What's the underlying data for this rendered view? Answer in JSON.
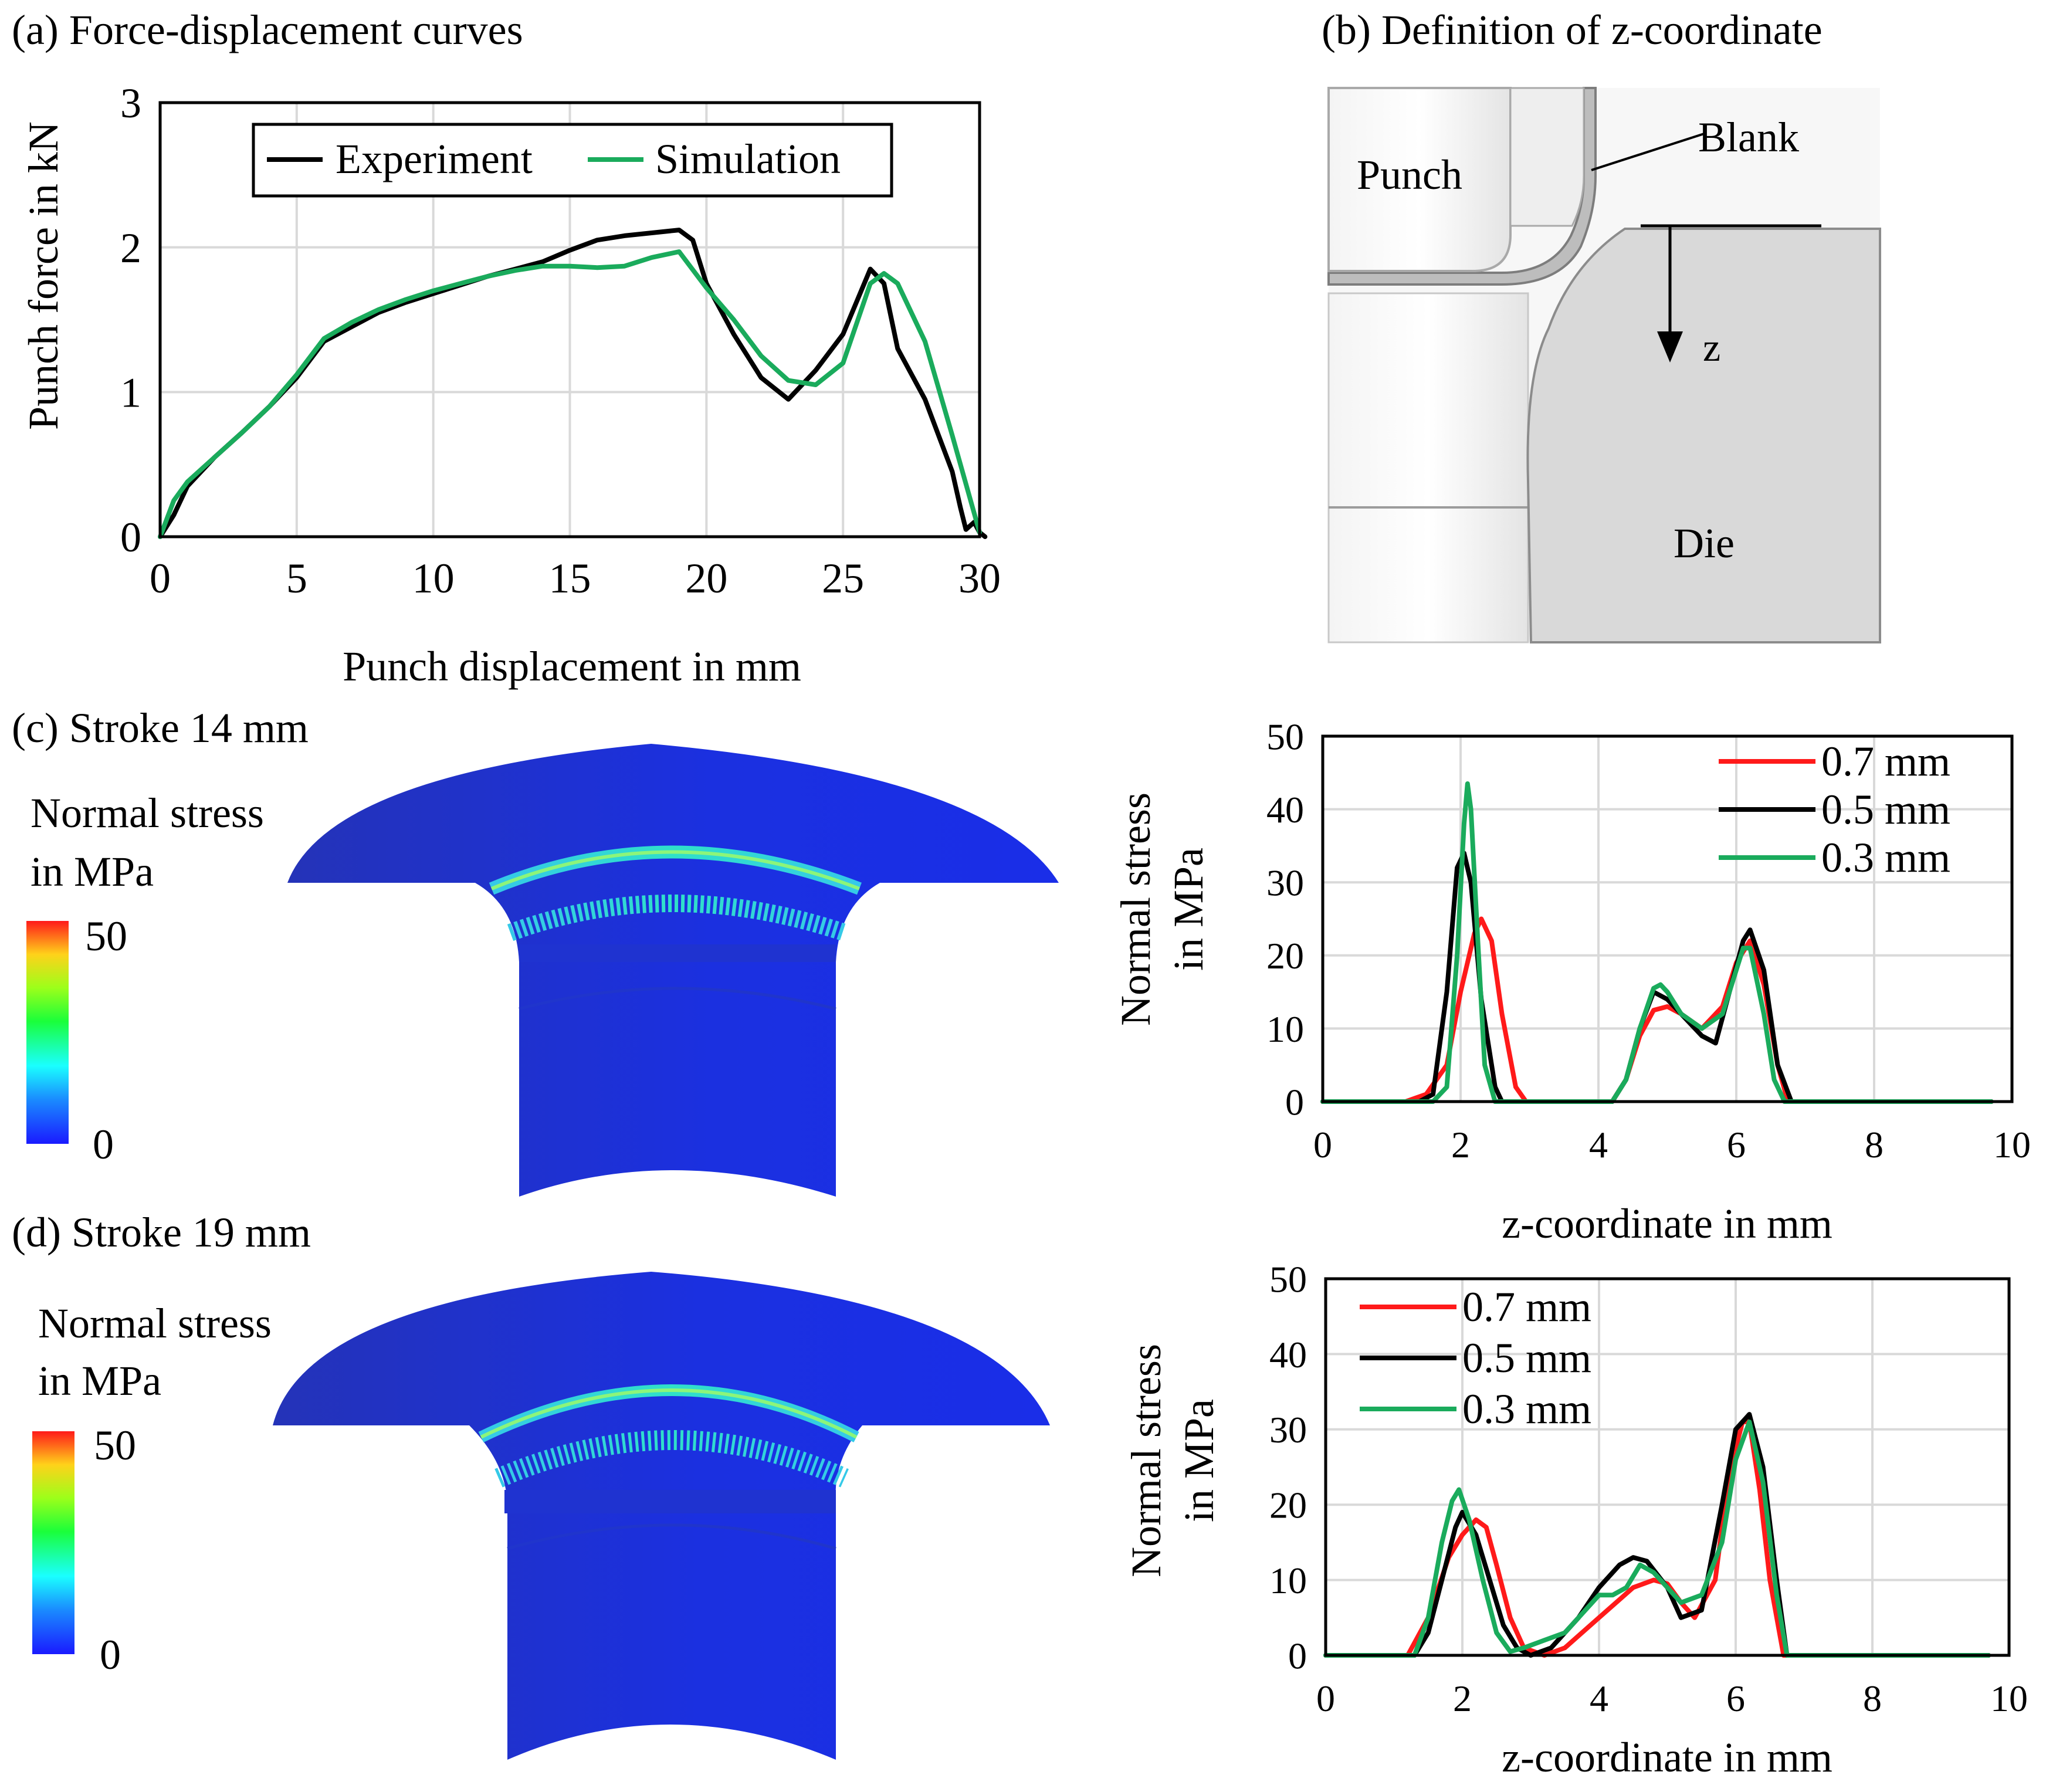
{
  "panel_labels": {
    "a": "(a) Force-displacement curves",
    "b": "(b) Definition of z-coordinate",
    "c": "(c) Stroke 14 mm",
    "d": "(d) Stroke 19 mm"
  },
  "schematic": {
    "punch": "Punch",
    "blank": "Blank",
    "die": "Die",
    "z": "z"
  },
  "colorbar": {
    "title_line1": "Normal stress",
    "title_line2": "in MPa",
    "max": "50",
    "min": "0"
  },
  "colors": {
    "experiment": "#000000",
    "simulation": "#1aab5c",
    "red": "#ff1a1a",
    "black": "#000000",
    "green": "#1aab5c",
    "fe_blue": "#1a2ee8"
  },
  "chart_data": [
    {
      "id": "a",
      "type": "line",
      "title": "(a) Force-displacement curves",
      "xlabel": "Punch displacement in mm",
      "ylabel": "Punch force in kN",
      "xlim": [
        0,
        30
      ],
      "ylim": [
        0,
        3
      ],
      "xticks": [
        0,
        5,
        10,
        15,
        20,
        25,
        30
      ],
      "yticks": [
        0,
        1,
        2,
        3
      ],
      "grid": true,
      "legend_position": "top",
      "series": [
        {
          "name": "Experiment",
          "color": "#000000",
          "x": [
            0,
            0.5,
            1,
            2,
            3,
            4,
            5,
            6,
            7,
            8,
            9,
            10,
            11,
            12,
            13,
            14,
            15,
            16,
            17,
            18,
            19,
            19.5,
            20,
            21,
            22,
            23,
            24,
            25,
            26,
            26.5,
            27,
            28,
            28.5,
            29,
            29.3,
            29.5,
            29.8,
            30,
            30.2
          ],
          "y": [
            0,
            0.15,
            0.35,
            0.55,
            0.72,
            0.9,
            1.1,
            1.35,
            1.45,
            1.55,
            1.62,
            1.68,
            1.74,
            1.8,
            1.85,
            1.9,
            1.98,
            2.05,
            2.08,
            2.1,
            2.12,
            2.05,
            1.75,
            1.4,
            1.1,
            0.95,
            1.15,
            1.4,
            1.85,
            1.75,
            1.3,
            0.95,
            0.7,
            0.45,
            0.2,
            0.05,
            0.1,
            0.03,
            0.0
          ]
        },
        {
          "name": "Simulation",
          "color": "#1aab5c",
          "x": [
            0,
            0.5,
            1,
            2,
            3,
            4,
            5,
            6,
            7,
            8,
            9,
            10,
            11,
            12,
            13,
            14,
            15,
            16,
            17,
            18,
            19,
            20,
            21,
            22,
            23,
            24,
            25,
            26,
            26.5,
            27,
            28,
            29,
            30
          ],
          "y": [
            0,
            0.25,
            0.38,
            0.55,
            0.72,
            0.9,
            1.12,
            1.37,
            1.48,
            1.57,
            1.64,
            1.7,
            1.75,
            1.8,
            1.84,
            1.87,
            1.87,
            1.86,
            1.87,
            1.93,
            1.97,
            1.72,
            1.5,
            1.25,
            1.08,
            1.05,
            1.2,
            1.75,
            1.82,
            1.75,
            1.35,
            0.7,
            0.03
          ]
        }
      ]
    },
    {
      "id": "c",
      "type": "line",
      "xlabel": "z-coordinate in mm",
      "ylabel_line1": "Normal stress",
      "ylabel_line2": "in MPa",
      "xlim": [
        0,
        10
      ],
      "ylim": [
        0,
        50
      ],
      "xticks": [
        0,
        2,
        4,
        6,
        8,
        10
      ],
      "yticks": [
        0,
        10,
        20,
        30,
        40,
        50
      ],
      "grid": true,
      "legend_position": "top-right",
      "series": [
        {
          "name": "0.7 mm",
          "color": "#ff1a1a",
          "x": [
            0,
            1.2,
            1.5,
            1.8,
            2.0,
            2.2,
            2.3,
            2.45,
            2.6,
            2.8,
            2.95,
            4.2,
            4.4,
            4.6,
            4.8,
            5.0,
            5.2,
            5.5,
            5.8,
            6.0,
            6.2,
            6.4,
            6.6,
            6.75,
            9.7
          ],
          "y": [
            0,
            0,
            1,
            5,
            15,
            23,
            25,
            22,
            12,
            2,
            0,
            0,
            3,
            9,
            12.5,
            13,
            12,
            10,
            13,
            19,
            22,
            16,
            5,
            0,
            0
          ]
        },
        {
          "name": "0.5 mm",
          "color": "#000000",
          "x": [
            0,
            1.4,
            1.6,
            1.8,
            1.95,
            2.05,
            2.15,
            2.3,
            2.5,
            2.6,
            4.2,
            4.4,
            4.6,
            4.8,
            5.0,
            5.2,
            5.5,
            5.7,
            5.9,
            6.1,
            6.2,
            6.4,
            6.6,
            6.8,
            9.7
          ],
          "y": [
            0,
            0,
            1,
            15,
            32,
            34,
            30,
            14,
            2,
            0,
            0,
            3,
            10,
            15,
            14,
            12,
            9,
            8,
            15,
            22,
            23.5,
            18,
            5,
            0,
            0
          ]
        },
        {
          "name": "0.3 mm",
          "color": "#1aab5c",
          "x": [
            0,
            1.6,
            1.8,
            1.95,
            2.05,
            2.1,
            2.15,
            2.25,
            2.35,
            2.5,
            4.2,
            4.4,
            4.6,
            4.8,
            4.9,
            5.0,
            5.2,
            5.5,
            5.8,
            6.0,
            6.1,
            6.2,
            6.4,
            6.55,
            6.7,
            9.7
          ],
          "y": [
            0,
            0,
            2,
            20,
            38,
            43.5,
            40,
            22,
            5,
            0,
            0,
            3,
            10,
            15.5,
            16,
            15,
            12,
            10,
            12,
            18,
            21,
            21,
            12,
            3,
            0,
            0
          ]
        }
      ]
    },
    {
      "id": "d",
      "type": "line",
      "xlabel": "z-coordinate in mm",
      "ylabel_line1": "Normal stress",
      "ylabel_line2": "in MPa",
      "xlim": [
        0,
        10
      ],
      "ylim": [
        0,
        50
      ],
      "xticks": [
        0,
        2,
        4,
        6,
        8,
        10
      ],
      "yticks": [
        0,
        10,
        20,
        30,
        40,
        50
      ],
      "grid": true,
      "legend_position": "top-left",
      "series": [
        {
          "name": "0.7 mm",
          "color": "#ff1a1a",
          "x": [
            0,
            1.2,
            1.5,
            1.8,
            2.0,
            2.2,
            2.35,
            2.5,
            2.7,
            2.9,
            3.2,
            3.5,
            4.0,
            4.5,
            4.8,
            5.0,
            5.2,
            5.4,
            5.7,
            5.9,
            6.1,
            6.2,
            6.35,
            6.5,
            6.7,
            9.7
          ],
          "y": [
            0,
            0,
            5,
            13,
            16,
            18,
            17,
            12,
            5,
            1,
            0,
            1,
            5,
            9,
            10,
            9.5,
            7,
            5,
            10,
            24,
            31,
            31,
            22,
            10,
            0,
            0
          ]
        },
        {
          "name": "0.5 mm",
          "color": "#000000",
          "x": [
            0,
            1.3,
            1.5,
            1.7,
            1.9,
            2.0,
            2.2,
            2.4,
            2.6,
            2.8,
            3.0,
            3.3,
            3.7,
            4.0,
            4.3,
            4.5,
            4.7,
            5.0,
            5.2,
            5.5,
            5.8,
            6.0,
            6.2,
            6.4,
            6.6,
            6.75,
            9.7
          ],
          "y": [
            0,
            0,
            3,
            10,
            17,
            19,
            16,
            10,
            4,
            1,
            0,
            1,
            5,
            9,
            12,
            13,
            12.5,
            9,
            5,
            6,
            20,
            30,
            32,
            25,
            10,
            0,
            0
          ]
        },
        {
          "name": "0.3 mm",
          "color": "#1aab5c",
          "x": [
            0,
            1.3,
            1.5,
            1.7,
            1.85,
            1.95,
            2.1,
            2.3,
            2.5,
            2.7,
            2.9,
            3.2,
            3.5,
            3.8,
            4.0,
            4.2,
            4.4,
            4.6,
            4.8,
            5.0,
            5.2,
            5.5,
            5.8,
            6.0,
            6.2,
            6.4,
            6.6,
            6.75,
            9.7
          ],
          "y": [
            0,
            0,
            5,
            15,
            20.5,
            22,
            18,
            10,
            3,
            0.5,
            1,
            2,
            3,
            6,
            8,
            8,
            9,
            12,
            11,
            9,
            7,
            8,
            15,
            26,
            31,
            23,
            8,
            0,
            0
          ]
        }
      ]
    }
  ]
}
